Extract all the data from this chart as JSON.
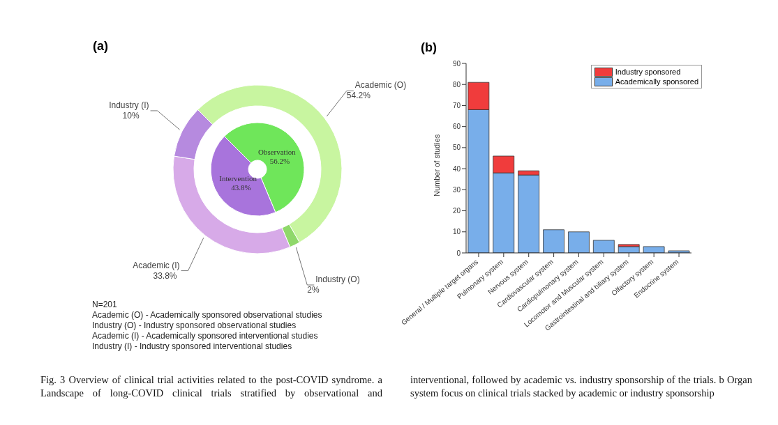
{
  "chart_data": [
    {
      "type": "donut",
      "title": "(a)",
      "categories": [
        "Observation",
        "Intervention"
      ],
      "values": [
        56.2,
        43.8
      ],
      "colors": [
        "#6fe65a",
        "#a874dc"
      ],
      "value_labels": [
        "56.2%",
        "43.8%"
      ],
      "annotations": [
        "N=201",
        "Academic (O) - Academically sponsored observational studies",
        "Industry (O) - Industry sponsored observational studies",
        "Academic (I) - Academically sponsored interventional studies",
        "Industry (I) - Industry sponsored interventional studies",
        "Fig. 3 Overview of clinical trial activities related to the post-COVID syndrome. a Landscape of long-COVID clinical trials stratified by observational and interventional, followed by academic vs. industry sponsorship of the trials. b Organ system focus on clinical trials stacked by academic or industry sponsorship"
      ]
    },
    {
      "type": "donut",
      "categories": [
        "Academic (O)",
        "Industry (O)",
        "Academic (I)",
        "Industry (I)"
      ],
      "values": [
        54.2,
        2,
        33.8,
        10
      ],
      "colors": [
        "#c8f5a0",
        "#8fd86a",
        "#d7aae8",
        "#b68adf"
      ],
      "value_labels": [
        "54.2%",
        "2%",
        "33.8%",
        "10%"
      ]
    },
    {
      "type": "bar",
      "title": "(b)",
      "stacked": true,
      "ylabel": "Number of studies",
      "categories": [
        "General / Multiple target organs",
        "Pulmonary system",
        "Nervous system",
        "Cardiovascular system",
        "Cardiopulmonary system",
        "Locomotor and Muscular system",
        "Gastrointestinal and biliary system",
        "Olfactory system",
        "Endocrine system"
      ],
      "series": [
        {
          "name": "Academically sponsored",
          "color": "#78aeea",
          "values": [
            68,
            38,
            37,
            11,
            10,
            6,
            3,
            3,
            1
          ]
        },
        {
          "name": "Industry sponsored",
          "color": "#f03c3c",
          "values": [
            13,
            8,
            2,
            0,
            0,
            0,
            1,
            0,
            0
          ]
        }
      ],
      "ylim": [
        0,
        90
      ],
      "yticks": [
        0,
        10,
        20,
        30,
        40,
        50,
        60,
        70,
        80,
        90
      ],
      "grid": false,
      "legend": "top right"
    }
  ]
}
